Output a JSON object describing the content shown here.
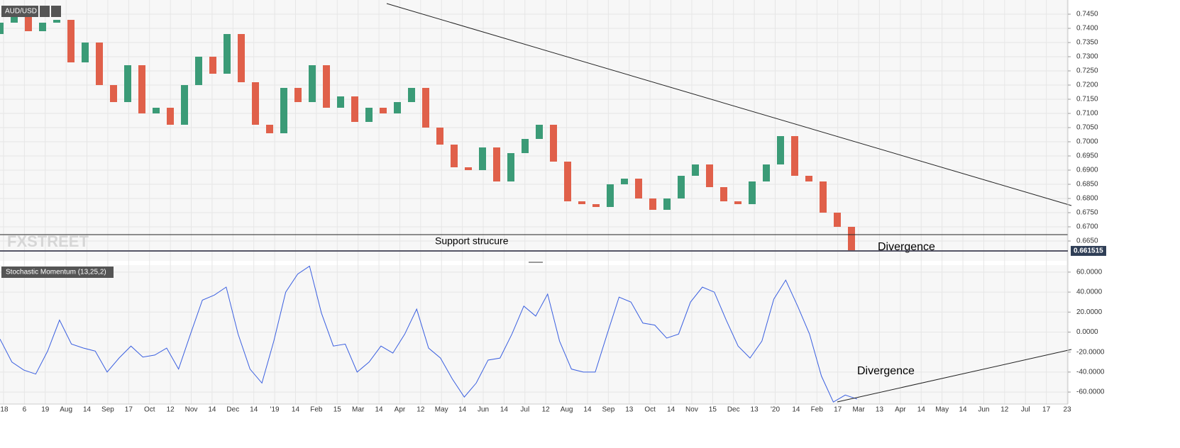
{
  "chart_data": [
    {
      "type": "candlestick",
      "title": "AUD/USD",
      "watermark": "FXSTREET",
      "annotations": [
        "Support strucure",
        "Divergence"
      ],
      "last_price": 0.661515,
      "up_color": "#3b9b77",
      "down_color": "#e0604a",
      "open": [
        0.738,
        0.742,
        0.745,
        0.739,
        0.742,
        0.743,
        0.728,
        0.735,
        0.72,
        0.714,
        0.727,
        0.71,
        0.712,
        0.706,
        0.72,
        0.73,
        0.724,
        0.738,
        0.721,
        0.706,
        0.703,
        0.719,
        0.714,
        0.727,
        0.712,
        0.716,
        0.707,
        0.712,
        0.71,
        0.714,
        0.719,
        0.705,
        0.699,
        0.691,
        0.69,
        0.698,
        0.686,
        0.696,
        0.701,
        0.706,
        0.693,
        0.679,
        0.678,
        0.677,
        0.685,
        0.687,
        0.68,
        0.676,
        0.68,
        0.688,
        0.692,
        0.684,
        0.679,
        0.678,
        0.686,
        0.692,
        0.702,
        0.688,
        0.686,
        0.675,
        0.67
      ],
      "close": [
        0.742,
        0.745,
        0.739,
        0.742,
        0.743,
        0.728,
        0.735,
        0.72,
        0.714,
        0.727,
        0.71,
        0.712,
        0.706,
        0.72,
        0.73,
        0.724,
        0.738,
        0.721,
        0.706,
        0.703,
        0.719,
        0.714,
        0.727,
        0.712,
        0.716,
        0.707,
        0.712,
        0.71,
        0.714,
        0.719,
        0.705,
        0.699,
        0.691,
        0.69,
        0.698,
        0.686,
        0.696,
        0.701,
        0.706,
        0.693,
        0.679,
        0.678,
        0.677,
        0.685,
        0.687,
        0.68,
        0.676,
        0.68,
        0.688,
        0.692,
        0.684,
        0.679,
        0.678,
        0.686,
        0.692,
        0.702,
        0.688,
        0.686,
        0.675,
        0.67,
        0.6615
      ],
      "ylim": [
        0.658,
        0.75
      ],
      "yticks": [
        {
          "value": 0.665,
          "label": "0.6650"
        },
        {
          "value": 0.67,
          "label": "0.6700"
        },
        {
          "value": 0.675,
          "label": "0.6750"
        },
        {
          "value": 0.68,
          "label": "0.6800"
        },
        {
          "value": 0.685,
          "label": "0.6850"
        },
        {
          "value": 0.69,
          "label": "0.6900"
        },
        {
          "value": 0.695,
          "label": "0.6950"
        },
        {
          "value": 0.7,
          "label": "0.7000"
        },
        {
          "value": 0.705,
          "label": "0.7050"
        },
        {
          "value": 0.71,
          "label": "0.7100"
        },
        {
          "value": 0.715,
          "label": "0.7150"
        },
        {
          "value": 0.72,
          "label": "0.7200"
        },
        {
          "value": 0.725,
          "label": "0.7250"
        },
        {
          "value": 0.73,
          "label": "0.7300"
        },
        {
          "value": 0.735,
          "label": "0.7350"
        },
        {
          "value": 0.74,
          "label": "0.7400"
        },
        {
          "value": 0.745,
          "label": "0.7450"
        }
      ],
      "x_axis_labels": [
        "'18",
        "6",
        "19",
        "Aug",
        "14",
        "Sep",
        "17",
        "Oct",
        "12",
        "Nov",
        "14",
        "Dec",
        "14",
        "'19",
        "14",
        "Feb",
        "15",
        "Mar",
        "14",
        "Apr",
        "12",
        "May",
        "14",
        "Jun",
        "14",
        "Jul",
        "12",
        "Aug",
        "14",
        "Sep",
        "13",
        "Oct",
        "14",
        "Nov",
        "15",
        "Dec",
        "13",
        "'20",
        "14",
        "Feb",
        "17",
        "Mar",
        "13",
        "Apr",
        "14",
        "May",
        "14",
        "Jun",
        "12",
        "Jul",
        "17",
        "23"
      ],
      "grid": true
    },
    {
      "type": "line",
      "title": "Stochastic Momentum (13,25,2)",
      "annotation": "Divergence",
      "color": "#3a5fe0",
      "values": [
        -7,
        -30,
        -38,
        -42,
        -19,
        12,
        -12,
        -16,
        -19,
        -40,
        -26,
        -14,
        -25,
        -23,
        -16,
        -37,
        -2,
        32,
        37,
        45,
        -2,
        -37,
        -51,
        -9,
        40,
        58,
        66,
        19,
        -14,
        -12,
        -40,
        -30,
        -14,
        -21,
        -2,
        23,
        -16,
        -26,
        -47,
        -65,
        -51,
        -28,
        -26,
        -2,
        26,
        16,
        38,
        -9,
        -37,
        -40,
        -40,
        -2,
        35,
        30,
        9,
        7,
        -6,
        -2,
        30,
        45,
        40,
        12,
        -14,
        -26,
        -9,
        33,
        52,
        26,
        -2,
        -44,
        -70,
        -63,
        -67
      ],
      "ylim": [
        -72,
        67
      ],
      "yticks": [
        {
          "value": 60,
          "label": "60.0000"
        },
        {
          "value": 40,
          "label": "40.0000"
        },
        {
          "value": 20,
          "label": "20.0000"
        },
        {
          "value": 0,
          "label": "0.0000"
        },
        {
          "value": -20,
          "label": "-20.0000"
        },
        {
          "value": -40,
          "label": "-40.0000"
        },
        {
          "value": -60,
          "label": "-60.0000"
        }
      ],
      "grid": true
    }
  ]
}
